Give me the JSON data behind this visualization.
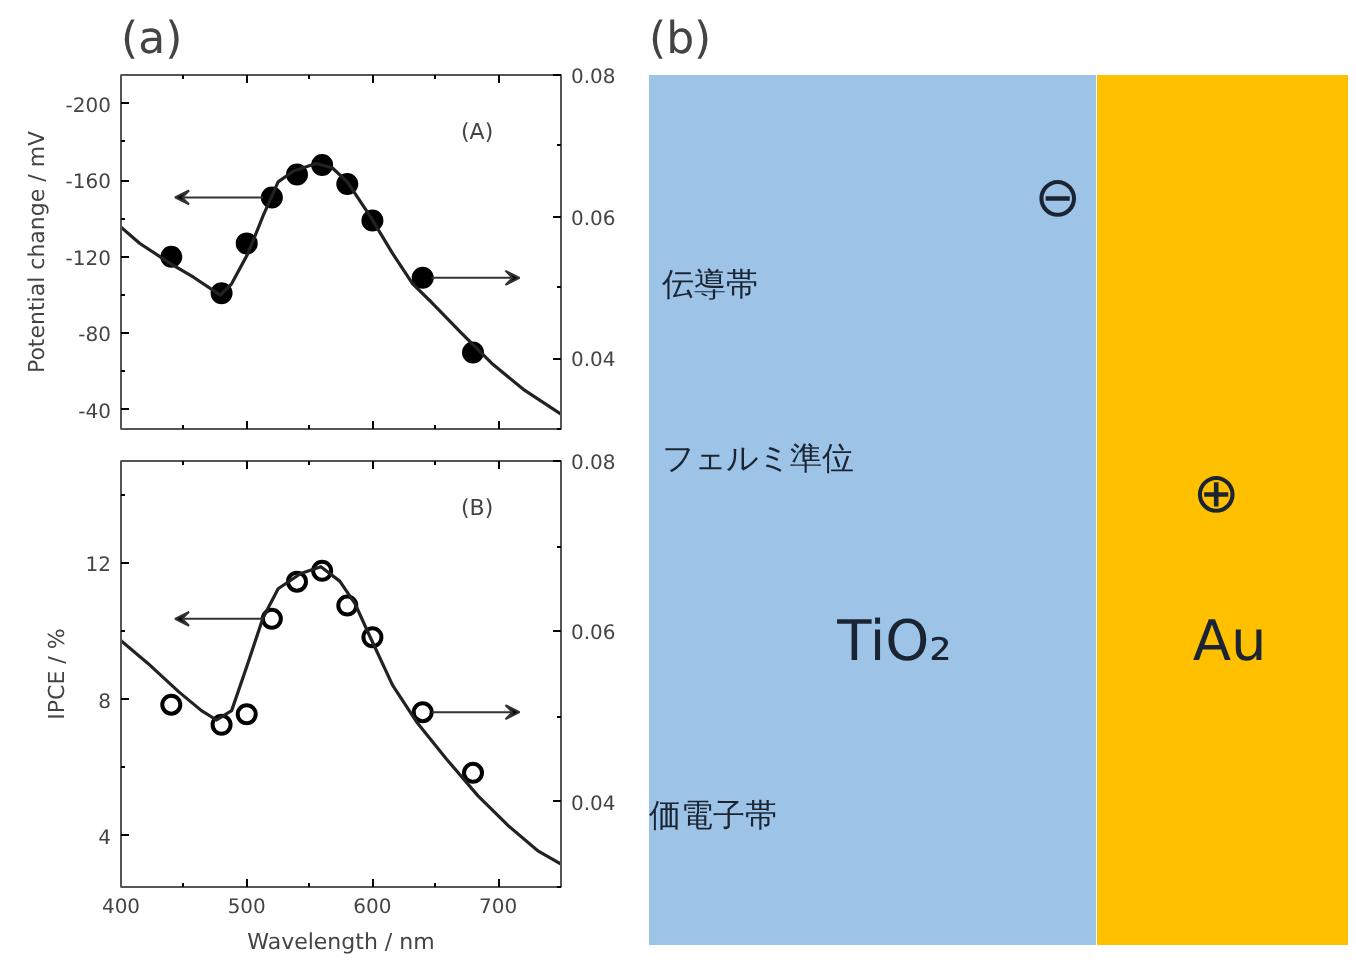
{
  "chart_data": [
    {
      "type": "scatter",
      "title": "(a)",
      "ylabel": "Potential change / mV",
      "annotations": [
        "(A)"
      ],
      "xlim": [
        400,
        750
      ],
      "xticks": [
        400,
        500,
        600,
        700
      ],
      "ylim": [
        -30,
        -215
      ],
      "yticks": [
        -200,
        -160,
        -120,
        -80,
        -40
      ],
      "y2lim": [
        0.03,
        0.08
      ],
      "y2ticks": [
        0.04,
        0.06,
        0.08
      ],
      "tick_labels": "y",
      "grid": false,
      "series": [
        {
          "type": "scatter",
          "marker": "circle",
          "color": "#000000",
          "x": [
            440,
            480,
            500,
            520,
            540,
            560,
            580,
            600,
            640,
            680
          ],
          "values": [
            -120,
            -101,
            -127,
            -151,
            -163,
            -168,
            -158,
            -139,
            -109,
            -70
          ]
        },
        {
          "type": "line",
          "axis": "y2",
          "color": "#222222",
          "x": [
            400,
            415,
            440,
            458,
            479,
            488,
            501,
            513,
            525,
            537,
            555,
            568,
            580,
            598,
            616,
            632,
            647,
            671,
            696,
            720,
            750
          ],
          "values": [
            0.0585,
            0.0562,
            0.0533,
            0.0514,
            0.0489,
            0.0505,
            0.0548,
            0.0601,
            0.0649,
            0.0664,
            0.0675,
            0.0669,
            0.0649,
            0.0601,
            0.0548,
            0.0505,
            0.0479,
            0.0435,
            0.0391,
            0.0356,
            0.0321
          ]
        }
      ]
    },
    {
      "type": "scatter",
      "xlabel": "Wavelength / nm",
      "ylabel": "IPCE / %",
      "annotations": [
        "(B)"
      ],
      "xlim": [
        400,
        750
      ],
      "xticks": [
        400,
        500,
        600,
        700
      ],
      "ylim": [
        2.5,
        15
      ],
      "yticks": [
        4,
        8,
        12
      ],
      "y2lim": [
        0.03,
        0.08
      ],
      "y2ticks": [
        0.04,
        0.06,
        0.08
      ],
      "grid": false,
      "series": [
        {
          "type": "scatter",
          "marker": "circle",
          "color": "#000000",
          "x": [
            440,
            480,
            500,
            520,
            540,
            560,
            580,
            600,
            640,
            680
          ],
          "values": [
            7.85,
            7.26,
            7.57,
            10.37,
            11.46,
            11.78,
            10.76,
            9.83,
            7.63,
            5.85
          ]
        },
        {
          "type": "line",
          "axis": "y2",
          "color": "#222222",
          "x": [
            400,
            421,
            446,
            464,
            476,
            488,
            501,
            513,
            525,
            543,
            559,
            574,
            586,
            598,
            616,
            635,
            659,
            684,
            708,
            732,
            750
          ],
          "values": [
            0.0589,
            0.0563,
            0.0529,
            0.0507,
            0.0496,
            0.0507,
            0.0563,
            0.0616,
            0.065,
            0.0668,
            0.0676,
            0.0659,
            0.0633,
            0.0594,
            0.0537,
            0.0494,
            0.045,
            0.0407,
            0.0372,
            0.0342,
            0.0327
          ]
        }
      ]
    },
    {
      "type": "other",
      "title": "(b)",
      "colors": [
        "#9dc3e6",
        "#ffc000"
      ],
      "annotations": [
        "⊖",
        "伝導帯",
        "フェルミ準位",
        "⊕",
        "TiO₂",
        "Au",
        "価電子帯"
      ]
    }
  ]
}
